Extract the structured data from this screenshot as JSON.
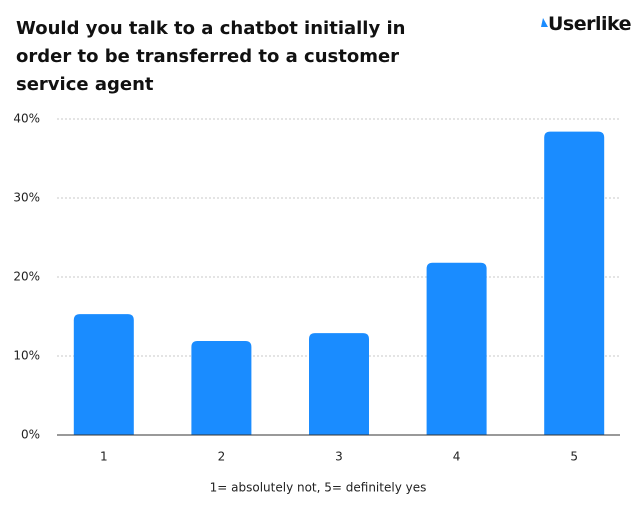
{
  "chart_data": {
    "type": "bar",
    "title": "Would you talk to a chatbot initially in order to be transferred to a customer service agent",
    "brand": "Userlike",
    "x_label": "1= absolutely not, 5= definitely yes",
    "categories": [
      "1",
      "2",
      "3",
      "4",
      "5"
    ],
    "values": [
      15.3,
      11.9,
      12.9,
      21.8,
      38.4
    ],
    "color": "#1a8cff",
    "ylim": [
      0,
      40
    ],
    "yticks": [
      {
        "value": 0,
        "label": "0%"
      },
      {
        "value": 10,
        "label": "10%"
      },
      {
        "value": 20,
        "label": "20%"
      },
      {
        "value": 30,
        "label": "30%"
      },
      {
        "value": 40,
        "label": "40%"
      }
    ],
    "grid": true
  }
}
